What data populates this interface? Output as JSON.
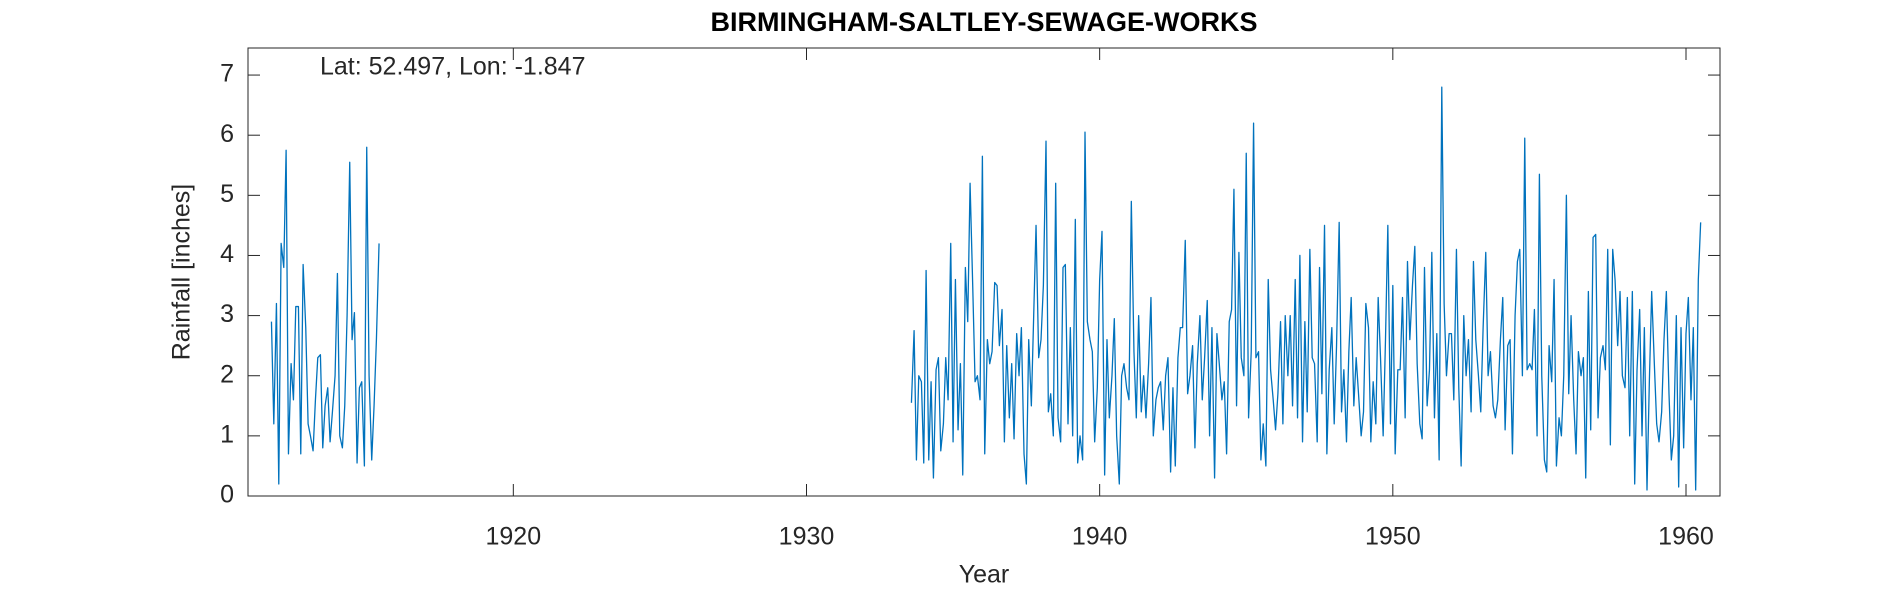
{
  "chart_data": {
    "type": "line",
    "title": "BIRMINGHAM-SALTLEY-SEWAGE-WORKS",
    "annotation": "Lat: 52.497, Lon: -1.847",
    "xlabel": "Year",
    "ylabel": "Rainfall [inches]",
    "color": "#0072BD",
    "grid": false,
    "xlim": [
      1910.95,
      1961.16
    ],
    "ylim": [
      0,
      7.45
    ],
    "xticks": [
      1920,
      1930,
      1940,
      1950,
      1960
    ],
    "yticks": [
      0,
      1,
      2,
      3,
      4,
      5,
      6,
      7
    ],
    "x": [
      1911.75,
      1911.83,
      1911.92,
      1912.0,
      1912.08,
      1912.17,
      1912.25,
      1912.33,
      1912.42,
      1912.5,
      1912.58,
      1912.67,
      1912.75,
      1912.83,
      1912.92,
      1913.0,
      1913.08,
      1913.17,
      1913.25,
      1913.33,
      1913.42,
      1913.5,
      1913.58,
      1913.67,
      1913.75,
      1913.83,
      1913.92,
      1914.0,
      1914.08,
      1914.17,
      1914.25,
      1914.33,
      1914.42,
      1914.5,
      1914.58,
      1914.67,
      1914.75,
      1914.83,
      1914.92,
      1915.0,
      1915.08,
      1915.17,
      1915.25,
      1915.33,
      1915.42,
      1915.5,
      1933.58,
      1933.67,
      1933.75,
      1933.83,
      1933.92,
      1934.0,
      1934.08,
      1934.17,
      1934.25,
      1934.33,
      1934.42,
      1934.5,
      1934.58,
      1934.67,
      1934.75,
      1934.83,
      1934.92,
      1935.0,
      1935.08,
      1935.17,
      1935.25,
      1935.33,
      1935.42,
      1935.5,
      1935.58,
      1935.67,
      1935.75,
      1935.83,
      1935.92,
      1936.0,
      1936.08,
      1936.17,
      1936.25,
      1936.33,
      1936.42,
      1936.5,
      1936.58,
      1936.67,
      1936.75,
      1936.83,
      1936.92,
      1937.0,
      1937.08,
      1937.17,
      1937.25,
      1937.33,
      1937.42,
      1937.5,
      1937.58,
      1937.67,
      1937.75,
      1937.83,
      1937.92,
      1938.0,
      1938.08,
      1938.17,
      1938.25,
      1938.33,
      1938.42,
      1938.5,
      1938.58,
      1938.67,
      1938.75,
      1938.83,
      1938.92,
      1939.0,
      1939.08,
      1939.17,
      1939.25,
      1939.33,
      1939.42,
      1939.5,
      1939.58,
      1939.67,
      1939.75,
      1939.83,
      1939.92,
      1940.0,
      1940.08,
      1940.17,
      1940.25,
      1940.33,
      1940.42,
      1940.5,
      1940.58,
      1940.67,
      1940.75,
      1940.83,
      1940.92,
      1941.0,
      1941.08,
      1941.17,
      1941.25,
      1941.33,
      1941.42,
      1941.5,
      1941.58,
      1941.67,
      1941.75,
      1941.83,
      1941.92,
      1942.0,
      1942.08,
      1942.17,
      1942.25,
      1942.33,
      1942.42,
      1942.5,
      1942.58,
      1942.67,
      1942.75,
      1942.83,
      1942.92,
      1943.0,
      1943.08,
      1943.17,
      1943.25,
      1943.33,
      1943.42,
      1943.5,
      1943.58,
      1943.67,
      1943.75,
      1943.83,
      1943.92,
      1944.0,
      1944.08,
      1944.17,
      1944.25,
      1944.33,
      1944.42,
      1944.5,
      1944.58,
      1944.67,
      1944.75,
      1944.83,
      1944.92,
      1945.0,
      1945.08,
      1945.17,
      1945.25,
      1945.33,
      1945.42,
      1945.5,
      1945.58,
      1945.67,
      1945.75,
      1945.83,
      1945.92,
      1946.0,
      1946.08,
      1946.17,
      1946.25,
      1946.33,
      1946.42,
      1946.5,
      1946.58,
      1946.67,
      1946.75,
      1946.83,
      1946.92,
      1947.0,
      1947.08,
      1947.17,
      1947.25,
      1947.33,
      1947.42,
      1947.5,
      1947.58,
      1947.67,
      1947.75,
      1947.83,
      1947.92,
      1948.0,
      1948.08,
      1948.17,
      1948.25,
      1948.33,
      1948.42,
      1948.5,
      1948.58,
      1948.67,
      1948.75,
      1948.83,
      1948.92,
      1949.0,
      1949.08,
      1949.17,
      1949.25,
      1949.33,
      1949.42,
      1949.5,
      1949.58,
      1949.67,
      1949.75,
      1949.83,
      1949.92,
      1950.0,
      1950.08,
      1950.17,
      1950.25,
      1950.33,
      1950.42,
      1950.5,
      1950.58,
      1950.67,
      1950.75,
      1950.83,
      1950.92,
      1951.0,
      1951.08,
      1951.17,
      1951.25,
      1951.33,
      1951.42,
      1951.5,
      1951.58,
      1951.67,
      1951.75,
      1951.83,
      1951.92,
      1952.0,
      1952.08,
      1952.17,
      1952.25,
      1952.33,
      1952.42,
      1952.5,
      1952.58,
      1952.67,
      1952.75,
      1952.83,
      1952.92,
      1953.0,
      1953.08,
      1953.17,
      1953.25,
      1953.33,
      1953.42,
      1953.5,
      1953.58,
      1953.67,
      1953.75,
      1953.83,
      1953.92,
      1954.0,
      1954.08,
      1954.17,
      1954.25,
      1954.33,
      1954.42,
      1954.5,
      1954.58,
      1954.67,
      1954.75,
      1954.83,
      1954.92,
      1955.0,
      1955.08,
      1955.17,
      1955.25,
      1955.33,
      1955.42,
      1955.5,
      1955.58,
      1955.67,
      1955.75,
      1955.83,
      1955.92,
      1956.0,
      1956.08,
      1956.17,
      1956.25,
      1956.33,
      1956.42,
      1956.5,
      1956.58,
      1956.67,
      1956.75,
      1956.83,
      1956.92,
      1957.0,
      1957.08,
      1957.17,
      1957.25,
      1957.33,
      1957.42,
      1957.5,
      1957.58,
      1957.67,
      1957.75,
      1957.83,
      1957.92,
      1958.0,
      1958.08,
      1958.17,
      1958.25,
      1958.33,
      1958.42,
      1958.5,
      1958.58,
      1958.67,
      1958.75,
      1958.83,
      1958.92,
      1959.0,
      1959.08,
      1959.17,
      1959.25,
      1959.33,
      1959.42,
      1959.5,
      1959.58,
      1959.67,
      1959.75,
      1959.83,
      1959.92,
      1960.0,
      1960.08,
      1960.17,
      1960.25,
      1960.33,
      1960.42,
      1960.5
    ],
    "values": [
      2.9,
      1.2,
      3.2,
      0.2,
      4.2,
      3.8,
      5.75,
      0.7,
      2.2,
      1.6,
      3.15,
      3.15,
      0.7,
      3.85,
      2.8,
      1.2,
      1.0,
      0.75,
      1.6,
      2.3,
      2.35,
      0.8,
      1.5,
      1.8,
      0.9,
      1.4,
      2.0,
      3.7,
      1.0,
      0.8,
      1.5,
      3.0,
      5.55,
      2.6,
      3.05,
      0.55,
      1.8,
      1.9,
      0.5,
      5.8,
      2.0,
      0.6,
      1.5,
      2.6,
      4.2,
      null,
      1.55,
      2.75,
      0.6,
      2.0,
      1.9,
      0.55,
      3.75,
      0.6,
      1.9,
      0.3,
      2.1,
      2.3,
      0.75,
      1.2,
      2.3,
      1.6,
      4.2,
      0.9,
      3.6,
      1.1,
      2.2,
      0.35,
      3.8,
      2.9,
      5.2,
      3.5,
      1.9,
      2.0,
      1.6,
      5.65,
      0.7,
      2.6,
      2.2,
      2.4,
      3.55,
      3.5,
      2.5,
      3.1,
      0.9,
      2.5,
      1.3,
      2.2,
      0.95,
      2.7,
      2.0,
      2.8,
      0.7,
      0.2,
      2.6,
      1.5,
      3.0,
      4.5,
      2.3,
      2.6,
      3.5,
      5.9,
      1.4,
      1.7,
      1.0,
      5.2,
      1.3,
      0.9,
      3.8,
      3.85,
      1.2,
      2.8,
      1.0,
      4.6,
      0.55,
      1.0,
      0.6,
      6.05,
      2.9,
      2.6,
      2.4,
      0.9,
      1.8,
      3.6,
      4.4,
      0.35,
      2.6,
      1.3,
      2.0,
      2.95,
      1.0,
      0.2,
      2.0,
      2.2,
      1.8,
      1.6,
      4.9,
      2.4,
      1.3,
      3.0,
      1.4,
      2.0,
      1.3,
      2.2,
      3.3,
      1.0,
      1.6,
      1.8,
      1.9,
      1.1,
      2.0,
      2.3,
      0.4,
      1.8,
      0.5,
      2.3,
      2.8,
      2.8,
      4.25,
      1.7,
      2.0,
      2.5,
      0.8,
      2.2,
      3.0,
      1.6,
      2.3,
      3.25,
      1.0,
      2.8,
      0.3,
      2.7,
      2.2,
      1.6,
      1.9,
      0.7,
      2.9,
      3.1,
      5.1,
      1.5,
      4.05,
      2.3,
      2.0,
      5.7,
      1.3,
      2.4,
      6.2,
      2.3,
      2.4,
      0.6,
      1.2,
      0.5,
      3.6,
      2.1,
      1.6,
      1.1,
      1.7,
      2.9,
      1.2,
      3.0,
      2.0,
      3.0,
      1.5,
      3.6,
      1.3,
      4.0,
      0.9,
      2.9,
      1.4,
      4.1,
      2.3,
      2.2,
      0.9,
      3.8,
      1.7,
      4.5,
      0.7,
      2.1,
      2.8,
      1.2,
      2.5,
      4.55,
      1.4,
      2.1,
      0.9,
      2.4,
      3.3,
      1.5,
      2.3,
      1.7,
      1.0,
      1.4,
      3.2,
      2.8,
      0.9,
      1.9,
      1.2,
      3.3,
      2.3,
      1.0,
      2.6,
      4.5,
      1.2,
      3.5,
      0.7,
      2.1,
      2.1,
      3.3,
      1.3,
      3.9,
      2.6,
      3.5,
      4.15,
      2.2,
      1.2,
      0.95,
      3.8,
      1.5,
      2.1,
      4.05,
      1.3,
      2.7,
      0.6,
      6.8,
      3.2,
      2.0,
      2.7,
      2.7,
      1.6,
      4.1,
      1.8,
      0.5,
      3.0,
      2.0,
      2.6,
      1.4,
      3.9,
      2.6,
      2.0,
      1.4,
      2.8,
      4.05,
      2.0,
      2.4,
      1.5,
      1.3,
      1.6,
      2.6,
      3.3,
      1.1,
      2.5,
      2.6,
      0.7,
      3.0,
      3.9,
      4.1,
      2.0,
      5.95,
      2.1,
      2.2,
      2.1,
      3.1,
      1.0,
      5.35,
      2.0,
      0.6,
      0.4,
      2.5,
      1.9,
      3.6,
      0.5,
      1.3,
      1.0,
      2.0,
      5.0,
      1.7,
      3.0,
      1.6,
      0.7,
      2.4,
      2.0,
      2.3,
      0.3,
      3.4,
      1.1,
      4.3,
      4.35,
      1.3,
      2.3,
      2.5,
      2.1,
      4.1,
      0.85,
      4.1,
      3.6,
      2.5,
      3.4,
      2.0,
      1.8,
      3.3,
      1.0,
      3.4,
      0.2,
      2.1,
      3.1,
      1.0,
      2.8,
      0.1,
      1.9,
      3.4,
      2.2,
      1.2,
      0.9,
      1.4,
      2.6,
      3.4,
      1.7,
      0.6,
      1.0,
      3.0,
      0.15,
      2.8,
      0.8,
      2.7,
      3.3,
      1.6,
      2.8,
      0.1,
      3.6,
      4.55
    ]
  }
}
